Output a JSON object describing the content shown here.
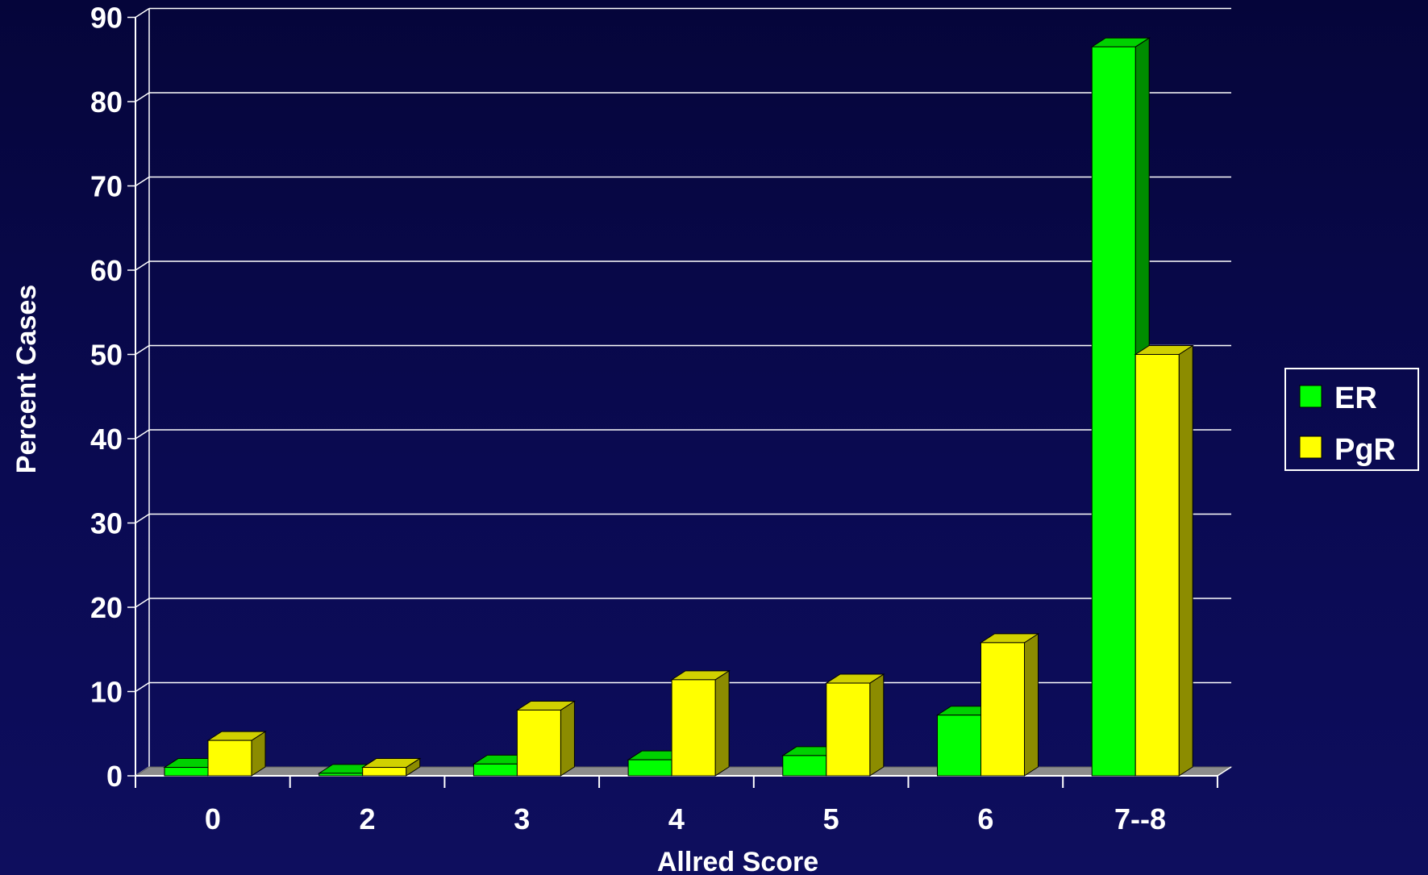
{
  "chart_data": {
    "type": "bar",
    "xlabel": "Allred Score",
    "ylabel": "Percent Cases",
    "categories": [
      "0",
      "2",
      "3",
      "4",
      "5",
      "6",
      "7--8"
    ],
    "series": [
      {
        "name": "ER",
        "values": [
          1,
          0.3,
          1.4,
          1.9,
          2.4,
          7.2,
          86.5
        ]
      },
      {
        "name": "PgR",
        "values": [
          4.2,
          1,
          7.8,
          11.4,
          11,
          15.8,
          50
        ]
      }
    ],
    "ylim": [
      0,
      90
    ],
    "yticks": [
      0,
      10,
      20,
      30,
      40,
      50,
      60,
      70,
      80,
      90
    ],
    "grid": true,
    "legend_position": "right",
    "colors": {
      "ER": "#00ff00",
      "PgR": "#ffff00",
      "background": "#0a0a4e",
      "floor": "#8c8c8c",
      "grid": "#ffffff"
    }
  }
}
